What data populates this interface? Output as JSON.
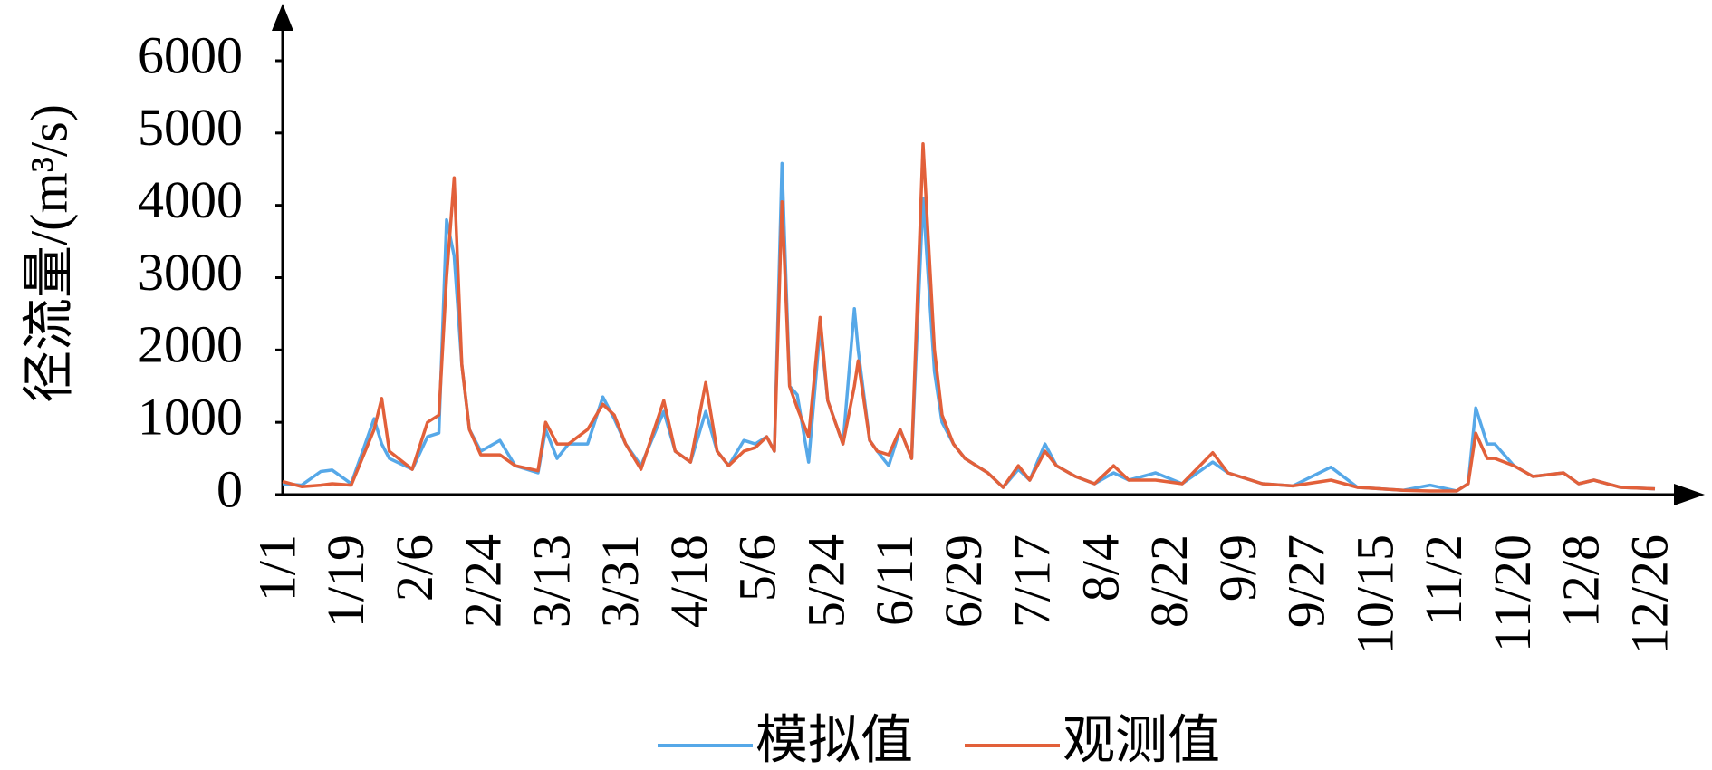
{
  "chart_data": {
    "type": "line",
    "ylabel": "径流量/(m³/s)",
    "x": [
      1,
      6,
      11,
      14,
      19,
      25,
      27,
      29,
      35,
      39,
      42,
      44,
      46,
      48,
      50,
      53,
      58,
      62,
      68,
      70,
      73,
      76,
      81,
      85,
      88,
      91,
      95,
      101,
      104,
      108,
      112,
      115,
      118,
      122,
      125,
      128,
      130,
      132,
      134,
      136,
      139,
      142,
      144,
      146,
      148,
      151,
      152,
      155,
      157,
      160,
      163,
      166,
      169,
      172,
      174,
      177,
      180,
      183,
      186,
      190,
      194,
      197,
      201,
      204,
      209,
      214,
      219,
      223,
      230,
      237,
      245,
      249,
      258,
      266,
      276,
      283,
      295,
      302,
      309,
      312,
      314,
      317,
      319,
      324,
      329,
      337,
      341,
      345,
      352,
      361
    ],
    "series": [
      {
        "name": "模拟值",
        "color": "#56a8e8",
        "values": [
          150,
          130,
          320,
          340,
          150,
          1050,
          700,
          500,
          350,
          800,
          850,
          3800,
          3300,
          1800,
          900,
          600,
          750,
          400,
          300,
          900,
          500,
          700,
          700,
          1350,
          1050,
          700,
          400,
          1150,
          600,
          450,
          1150,
          600,
          400,
          750,
          700,
          800,
          600,
          4580,
          1500,
          1380,
          450,
          2300,
          1300,
          1000,
          700,
          2570,
          2000,
          750,
          600,
          400,
          900,
          500,
          4100,
          1700,
          1000,
          700,
          500,
          400,
          300,
          100,
          350,
          200,
          700,
          400,
          250,
          150,
          300,
          200,
          300,
          150,
          450,
          300,
          150,
          120,
          380,
          100,
          60,
          130,
          50,
          150,
          1200,
          700,
          700,
          400,
          250,
          300,
          150,
          200,
          100,
          80
        ]
      },
      {
        "name": "观测值",
        "color": "#e2603a",
        "values": [
          180,
          110,
          130,
          150,
          130,
          900,
          1330,
          600,
          350,
          1000,
          1100,
          3000,
          4380,
          1800,
          900,
          550,
          550,
          400,
          330,
          1000,
          700,
          700,
          900,
          1250,
          1100,
          700,
          350,
          1300,
          600,
          450,
          1550,
          600,
          400,
          600,
          650,
          800,
          600,
          4050,
          1500,
          1200,
          800,
          2450,
          1300,
          1000,
          700,
          1500,
          1850,
          750,
          600,
          550,
          900,
          500,
          4850,
          2000,
          1100,
          700,
          500,
          400,
          300,
          100,
          400,
          200,
          600,
          400,
          250,
          150,
          400,
          200,
          200,
          150,
          580,
          300,
          150,
          120,
          200,
          100,
          60,
          50,
          50,
          150,
          850,
          500,
          500,
          400,
          250,
          300,
          150,
          200,
          100,
          80
        ]
      }
    ],
    "xlim": [
      1,
      366
    ],
    "xticks": [
      {
        "value": 1,
        "label": "1/1"
      },
      {
        "value": 19,
        "label": "1/19"
      },
      {
        "value": 37,
        "label": "2/6"
      },
      {
        "value": 55,
        "label": "2/24"
      },
      {
        "value": 73,
        "label": "3/13"
      },
      {
        "value": 91,
        "label": "3/31"
      },
      {
        "value": 109,
        "label": "4/18"
      },
      {
        "value": 127,
        "label": "5/6"
      },
      {
        "value": 145,
        "label": "5/24"
      },
      {
        "value": 163,
        "label": "6/11"
      },
      {
        "value": 181,
        "label": "6/29"
      },
      {
        "value": 199,
        "label": "7/17"
      },
      {
        "value": 217,
        "label": "8/4"
      },
      {
        "value": 235,
        "label": "8/22"
      },
      {
        "value": 253,
        "label": "9/9"
      },
      {
        "value": 271,
        "label": "9/27"
      },
      {
        "value": 289,
        "label": "10/15"
      },
      {
        "value": 307,
        "label": "11/2"
      },
      {
        "value": 325,
        "label": "11/20"
      },
      {
        "value": 343,
        "label": "12/8"
      },
      {
        "value": 361,
        "label": "12/26"
      }
    ],
    "ylim": [
      0,
      6000
    ],
    "yticks": [
      0,
      1000,
      2000,
      3000,
      4000,
      5000,
      6000
    ],
    "grid": false,
    "legend": "bottom"
  }
}
